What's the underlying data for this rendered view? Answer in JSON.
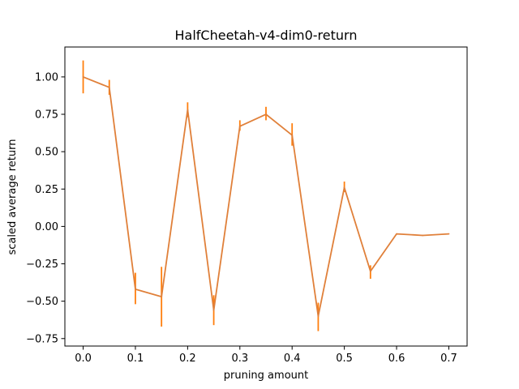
{
  "chart_data": {
    "type": "line",
    "title": "HalfCheetah-v4-dim0-return",
    "xlabel": "pruning amount",
    "ylabel": "scaled average return",
    "xlim": [
      -0.035,
      0.735
    ],
    "ylim": [
      -0.8,
      1.2
    ],
    "xticks": [
      0.0,
      0.1,
      0.2,
      0.3,
      0.4,
      0.5,
      0.6,
      0.7
    ],
    "xtick_labels": [
      "0.0",
      "0.1",
      "0.2",
      "0.3",
      "0.4",
      "0.5",
      "0.6",
      "0.7"
    ],
    "yticks": [
      -0.75,
      -0.5,
      -0.25,
      0.0,
      0.25,
      0.5,
      0.75,
      1.0
    ],
    "ytick_labels": [
      "−0.75",
      "−0.50",
      "−0.25",
      "0.00",
      "0.25",
      "0.50",
      "0.75",
      "1.00"
    ],
    "grid": false,
    "series": [
      {
        "color": "#ff7f0e",
        "line_color": "#e0803a",
        "x": [
          0.0,
          0.05,
          0.1,
          0.15,
          0.2,
          0.25,
          0.3,
          0.35,
          0.4,
          0.45,
          0.5,
          0.55,
          0.6,
          0.65,
          0.7
        ],
        "y": [
          1.0,
          0.93,
          -0.42,
          -0.47,
          0.78,
          -0.56,
          0.67,
          0.75,
          0.61,
          -0.6,
          0.26,
          -0.3,
          -0.05,
          -0.06,
          -0.05
        ],
        "yerr_low": [
          0.89,
          0.88,
          -0.52,
          -0.67,
          0.73,
          -0.66,
          0.64,
          0.71,
          0.54,
          -0.7,
          0.23,
          -0.35,
          -0.05,
          -0.06,
          -0.05
        ],
        "yerr_high": [
          1.11,
          0.98,
          -0.31,
          -0.27,
          0.83,
          -0.46,
          0.71,
          0.8,
          0.69,
          -0.51,
          0.3,
          -0.26,
          -0.05,
          -0.06,
          -0.05
        ]
      }
    ]
  }
}
